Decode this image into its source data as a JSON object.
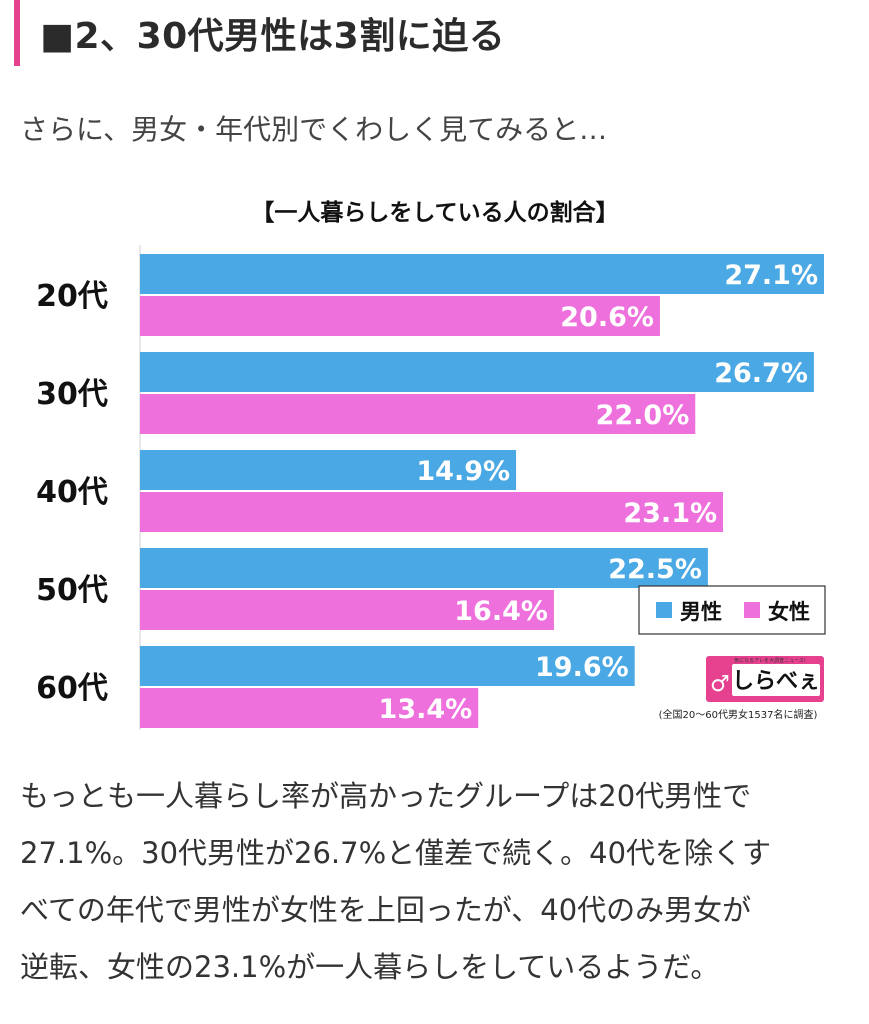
{
  "heading": {
    "text": "■2、30代男性は3割に迫る",
    "accent_color": "#e6418f"
  },
  "intro": "さらに、男女・年代別でくわしく見てみると…",
  "chart_data": {
    "type": "bar",
    "orientation": "horizontal",
    "title": "【一人暮らしをしている人の割合】",
    "categories": [
      "20代",
      "30代",
      "40代",
      "50代",
      "60代"
    ],
    "series": [
      {
        "name": "男性",
        "color": "#4aa9e4",
        "values": [
          27.1,
          26.7,
          14.9,
          22.5,
          19.6
        ],
        "labels": [
          "27.1%",
          "26.7%",
          "14.9%",
          "22.5%",
          "19.6%"
        ]
      },
      {
        "name": "女性",
        "color": "#ee70dc",
        "values": [
          20.6,
          22.0,
          23.1,
          16.4,
          13.4
        ],
        "labels": [
          "20.6%",
          "22.0%",
          "23.1%",
          "16.4%",
          "13.4%"
        ]
      }
    ],
    "xlim": [
      0,
      28
    ],
    "grid": false,
    "legend_position": "bottom-right",
    "note": "(全国20〜60代男女1537名に調査)",
    "logo": {
      "text": "しらべぇ",
      "tagline": "気になるアレを大調査ニュース!",
      "color": "#e6418f"
    }
  },
  "body_lines": [
    "もっとも一人暮らし率が高かったグループは20代男性で",
    "27.1%。30代男性が26.7%と僅差で続く。40代を除くす",
    "べての年代で男性が女性を上回ったが、40代のみ男女が",
    "逆転、女性の23.1%が一人暮らしをしているようだ。"
  ]
}
